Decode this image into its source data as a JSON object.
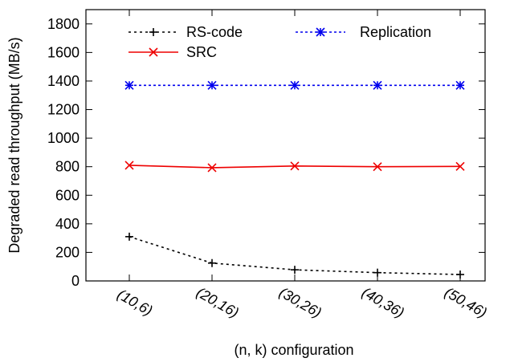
{
  "chart_data": {
    "type": "line",
    "xlabel": "(n, k) configuration",
    "ylabel": "Degraded read throughput (MB/s)",
    "categories": [
      "(10,6)",
      "(20,16)",
      "(30,26)",
      "(40,36)",
      "(50,46)"
    ],
    "ylim": [
      0,
      1900
    ],
    "yticks": [
      0,
      200,
      400,
      600,
      800,
      1000,
      1200,
      1400,
      1600,
      1800
    ],
    "grid": false,
    "legend_position": "top",
    "series": [
      {
        "name": "RS-code",
        "values": [
          310,
          125,
          78,
          58,
          45
        ],
        "color": "#000000",
        "dash": "3,4",
        "marker": "plus"
      },
      {
        "name": "Replication",
        "values": [
          1370,
          1370,
          1370,
          1370,
          1370
        ],
        "color": "#0000ee",
        "dash": "3,3",
        "marker": "star"
      },
      {
        "name": "SRC",
        "values": [
          810,
          793,
          805,
          800,
          802
        ],
        "color": "#ee0000",
        "dash": "",
        "marker": "cross"
      }
    ]
  }
}
